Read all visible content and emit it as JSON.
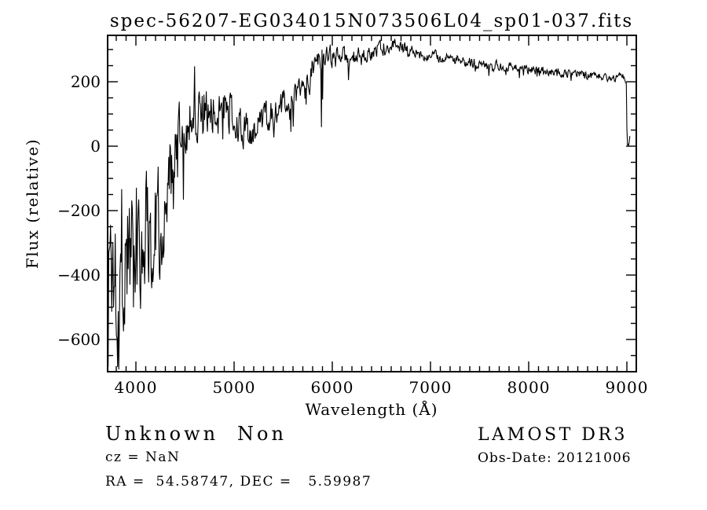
{
  "chart_data": {
    "type": "line",
    "title": "spec-56207-EG034015N073506L04_sp01-037.fits",
    "xlabel": "Wavelength (Å)",
    "ylabel": "Flux (relative)",
    "xlim": [
      3712,
      9096
    ],
    "ylim": [
      -700,
      344
    ],
    "x_ticks": [
      4000,
      5000,
      6000,
      7000,
      8000,
      9000
    ],
    "x_minor_step": 100,
    "y_ticks": [
      200,
      0,
      -200,
      -400,
      -600
    ],
    "y_minor_step": 50,
    "grid": false,
    "legend": "none",
    "line_color": "#000000",
    "series": [
      {
        "name": "spectrum-flux",
        "wl_start": 3712,
        "wl_end": 9030,
        "anchors": [
          [
            3712,
            -320,
            330
          ],
          [
            3760,
            -360,
            300
          ],
          [
            3820,
            -370,
            280
          ],
          [
            3880,
            -340,
            260
          ],
          [
            3940,
            -310,
            250
          ],
          [
            4000,
            -290,
            240
          ],
          [
            4060,
            -265,
            220
          ],
          [
            4120,
            -245,
            205
          ],
          [
            4180,
            -230,
            195
          ],
          [
            4240,
            -210,
            185
          ],
          [
            4300,
            -160,
            165
          ],
          [
            4360,
            -115,
            150
          ],
          [
            4420,
            -40,
            130
          ],
          [
            4480,
            40,
            110
          ],
          [
            4540,
            85,
            95
          ],
          [
            4600,
            105,
            90
          ],
          [
            4660,
            120,
            80
          ],
          [
            4720,
            115,
            72
          ],
          [
            4780,
            118,
            70
          ],
          [
            4840,
            105,
            68
          ],
          [
            4900,
            118,
            62
          ],
          [
            4960,
            105,
            60
          ],
          [
            5020,
            80,
            58
          ],
          [
            5080,
            55,
            56
          ],
          [
            5140,
            45,
            52
          ],
          [
            5200,
            42,
            52
          ],
          [
            5260,
            62,
            50
          ],
          [
            5320,
            85,
            50
          ],
          [
            5380,
            105,
            46
          ],
          [
            5440,
            115,
            46
          ],
          [
            5500,
            128,
            44
          ],
          [
            5560,
            140,
            42
          ],
          [
            5620,
            152,
            44
          ],
          [
            5680,
            168,
            44
          ],
          [
            5740,
            190,
            42
          ],
          [
            5800,
            245,
            38
          ],
          [
            5860,
            268,
            34
          ],
          [
            5920,
            265,
            34
          ],
          [
            5980,
            278,
            33
          ],
          [
            6040,
            272,
            33
          ],
          [
            6100,
            276,
            32
          ],
          [
            6160,
            270,
            32
          ],
          [
            6220,
            272,
            30
          ],
          [
            6280,
            280,
            28
          ],
          [
            6340,
            288,
            26
          ],
          [
            6400,
            293,
            25
          ],
          [
            6460,
            300,
            24
          ],
          [
            6520,
            308,
            23
          ],
          [
            6580,
            316,
            21
          ],
          [
            6640,
            318,
            20
          ],
          [
            6700,
            310,
            20
          ],
          [
            6760,
            300,
            19
          ],
          [
            6820,
            292,
            18
          ],
          [
            6900,
            286,
            18
          ],
          [
            7000,
            280,
            17
          ],
          [
            7100,
            276,
            17
          ],
          [
            7200,
            271,
            16
          ],
          [
            7300,
            268,
            16
          ],
          [
            7400,
            262,
            16
          ],
          [
            7500,
            257,
            16
          ],
          [
            7600,
            246,
            16
          ],
          [
            7700,
            250,
            15
          ],
          [
            7800,
            247,
            15
          ],
          [
            7900,
            244,
            14
          ],
          [
            8000,
            240,
            14
          ],
          [
            8100,
            237,
            14
          ],
          [
            8200,
            234,
            14
          ],
          [
            8300,
            229,
            13
          ],
          [
            8400,
            225,
            13
          ],
          [
            8500,
            222,
            13
          ],
          [
            8600,
            219,
            13
          ],
          [
            8700,
            217,
            12
          ],
          [
            8800,
            214,
            12
          ],
          [
            8880,
            213,
            12
          ],
          [
            8940,
            228,
            10
          ],
          [
            8975,
            210,
            9
          ],
          [
            8995,
            200,
            7
          ],
          [
            9002,
            5,
            4
          ],
          [
            9018,
            8,
            10
          ],
          [
            9030,
            30,
            8
          ]
        ],
        "spikes": [
          [
            3713,
            30
          ],
          [
            3719,
            -685
          ],
          [
            4600,
            248
          ],
          [
            5888,
            59
          ],
          [
            5902,
            145
          ],
          [
            6165,
            205
          ]
        ]
      }
    ]
  },
  "annotations": {
    "obj_class": "Unknown",
    "obj_subclass": "Non",
    "cz": "cz = NaN",
    "radec": "RA =  54.58747, DEC =   5.59987",
    "survey": "LAMOST DR3",
    "obs_date": "Obs-Date: 20121006"
  }
}
